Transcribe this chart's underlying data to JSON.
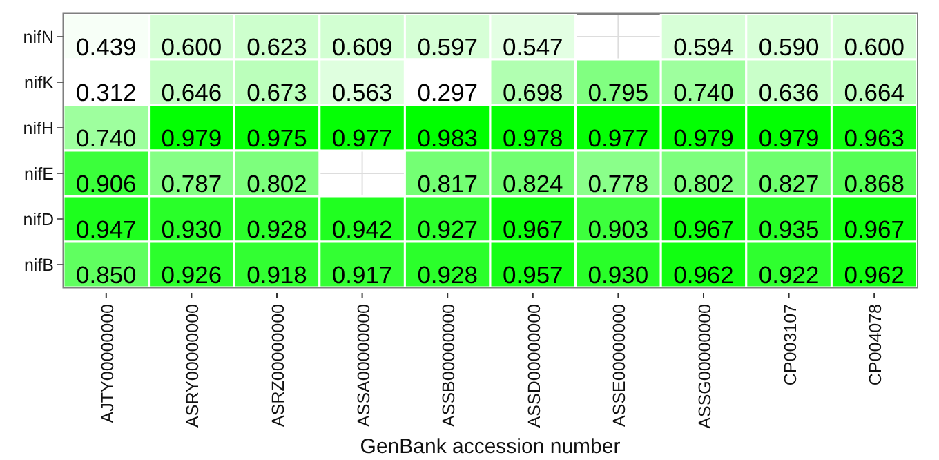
{
  "chart_data": {
    "type": "heatmap",
    "xlabel": "GenBank accession number",
    "categories": [
      "AJTY00000000",
      "ASRY00000000",
      "ASRZ00000000",
      "ASSA00000000",
      "ASSB00000000",
      "ASSD00000000",
      "ASSE00000000",
      "ASSG00000000",
      "CP003107",
      "CP004078"
    ],
    "y_categories": [
      "nifN",
      "nifK",
      "nifH",
      "nifE",
      "nifD",
      "nifB"
    ],
    "cells": [
      [
        0.439,
        0.6,
        0.623,
        0.609,
        0.597,
        0.547,
        null,
        0.594,
        0.59,
        0.6
      ],
      [
        0.312,
        0.646,
        0.673,
        0.563,
        0.297,
        0.698,
        0.795,
        0.74,
        0.636,
        0.664
      ],
      [
        0.74,
        0.979,
        0.975,
        0.977,
        0.983,
        0.978,
        0.977,
        0.979,
        0.979,
        0.963
      ],
      [
        0.906,
        0.787,
        0.802,
        null,
        0.817,
        0.824,
        0.778,
        0.802,
        0.827,
        0.868
      ],
      [
        0.947,
        0.93,
        0.928,
        0.942,
        0.927,
        0.967,
        0.903,
        0.967,
        0.935,
        0.967
      ],
      [
        0.85,
        0.926,
        0.918,
        0.917,
        0.928,
        0.957,
        0.93,
        0.962,
        0.922,
        0.962
      ]
    ],
    "cell_labels": [
      [
        "0.439",
        "0.600",
        "0.623",
        "0.609",
        "0.597",
        "0.547",
        null,
        "0.594",
        "0.590",
        "0.600"
      ],
      [
        "0.312",
        "0.646",
        "0.673",
        "0.563",
        "0.297",
        "0.698",
        "0.795",
        "0.740",
        "0.636",
        "0.664"
      ],
      [
        "0.740",
        "0.979",
        "0.975",
        "0.977",
        "0.983",
        "0.978",
        "0.977",
        "0.979",
        "0.979",
        "0.963"
      ],
      [
        "0.906",
        "0.787",
        "0.802",
        null,
        "0.817",
        "0.824",
        "0.778",
        "0.802",
        "0.827",
        "0.868"
      ],
      [
        "0.947",
        "0.930",
        "0.928",
        "0.942",
        "0.927",
        "0.967",
        "0.903",
        "0.967",
        "0.935",
        "0.967"
      ],
      [
        "0.850",
        "0.926",
        "0.918",
        "0.917",
        "0.928",
        "0.957",
        "0.930",
        "0.962",
        "0.922",
        "0.962"
      ]
    ],
    "colors": [
      "#ffffff",
      "#00ff00"
    ],
    "data_labels": true,
    "grid": true
  }
}
